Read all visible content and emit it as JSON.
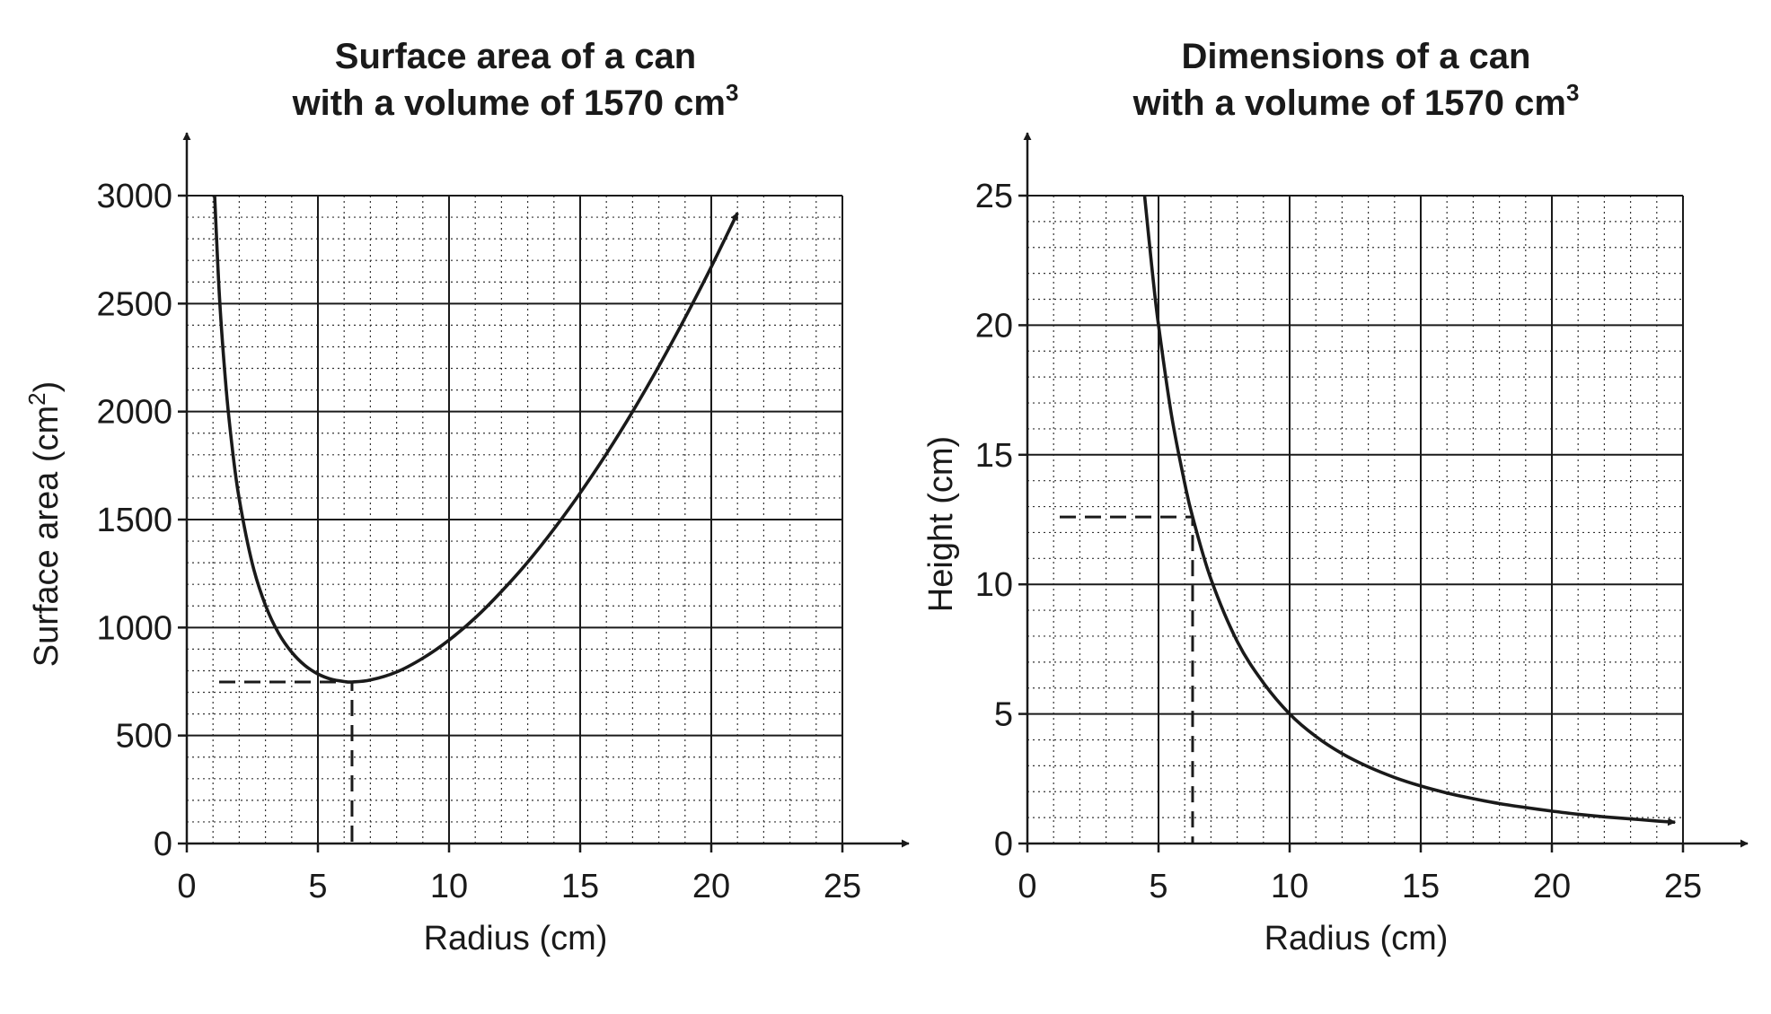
{
  "chart_data": [
    {
      "type": "line",
      "title_line1": "Surface area of a can",
      "title_line2": "with a volume of 1570 cm",
      "title_sup": "3",
      "xlabel": "Radius (cm)",
      "ylabel": "Surface area (cm",
      "ylabel_sup": "2",
      "ylabel_close": ")",
      "xlim": [
        0,
        25
      ],
      "ylim": [
        0,
        3000
      ],
      "x_ticks": [
        0,
        5,
        10,
        15,
        20,
        25
      ],
      "y_ticks": [
        0,
        500,
        1000,
        1500,
        2000,
        2500,
        3000
      ],
      "x_tick_labels": [
        "0",
        "5",
        "10",
        "15",
        "20",
        "25"
      ],
      "y_tick_labels": [
        "0",
        "500",
        "1000",
        "1500",
        "2000",
        "2500",
        "3000"
      ],
      "x_minor_step": 1,
      "y_minor_step": 100,
      "grid": true,
      "series": [
        {
          "name": "surface area",
          "x": [
            1.06,
            1.25,
            1.5,
            1.75,
            2,
            2.5,
            3,
            3.5,
            4,
            4.5,
            5,
            5.5,
            6,
            6.3,
            7,
            8,
            9,
            10,
            11,
            12,
            13,
            14,
            15,
            16,
            17,
            18,
            19,
            20,
            21
          ],
          "y": [
            3000,
            2522,
            2107,
            1814,
            1595,
            1295,
            1103,
            974,
            886,
            825,
            785,
            761,
            750,
            748,
            757,
            794,
            858,
            942,
            1045,
            1167,
            1303,
            1456,
            1623,
            1804,
            2000,
            2210,
            2434,
            2670,
            2920
          ],
          "arrow_end": true
        }
      ],
      "guide": {
        "x": 6.3,
        "y": 748
      }
    },
    {
      "type": "line",
      "title_line1": "Dimensions of a can",
      "title_line2": "with a volume of 1570 cm",
      "title_sup": "3",
      "xlabel": "Radius (cm)",
      "ylabel": "Height (cm)",
      "xlim": [
        0,
        25
      ],
      "ylim": [
        0,
        25
      ],
      "x_ticks": [
        0,
        5,
        10,
        15,
        20,
        25
      ],
      "y_ticks": [
        0,
        5,
        10,
        15,
        20,
        25
      ],
      "x_tick_labels": [
        "0",
        "5",
        "10",
        "15",
        "20",
        "25"
      ],
      "y_tick_labels": [
        "0",
        "5",
        "10",
        "15",
        "20",
        "25"
      ],
      "x_minor_step": 1,
      "y_minor_step": 1,
      "grid": true,
      "series": [
        {
          "name": "height",
          "x": [
            4.47,
            4.75,
            5,
            5.5,
            6,
            6.3,
            7,
            8,
            9,
            10,
            11,
            12,
            13,
            14,
            15,
            16,
            17,
            18,
            19,
            20,
            21,
            22,
            23,
            24,
            24.7
          ],
          "y": [
            25,
            22.2,
            20,
            16.5,
            13.9,
            12.6,
            10.2,
            7.8,
            6.2,
            5,
            4.13,
            3.47,
            2.96,
            2.55,
            2.22,
            1.95,
            1.73,
            1.54,
            1.39,
            1.25,
            1.13,
            1.03,
            0.95,
            0.87,
            0.82
          ],
          "arrow_end": true
        }
      ],
      "guide": {
        "x": 6.3,
        "y": 12.6
      }
    }
  ]
}
